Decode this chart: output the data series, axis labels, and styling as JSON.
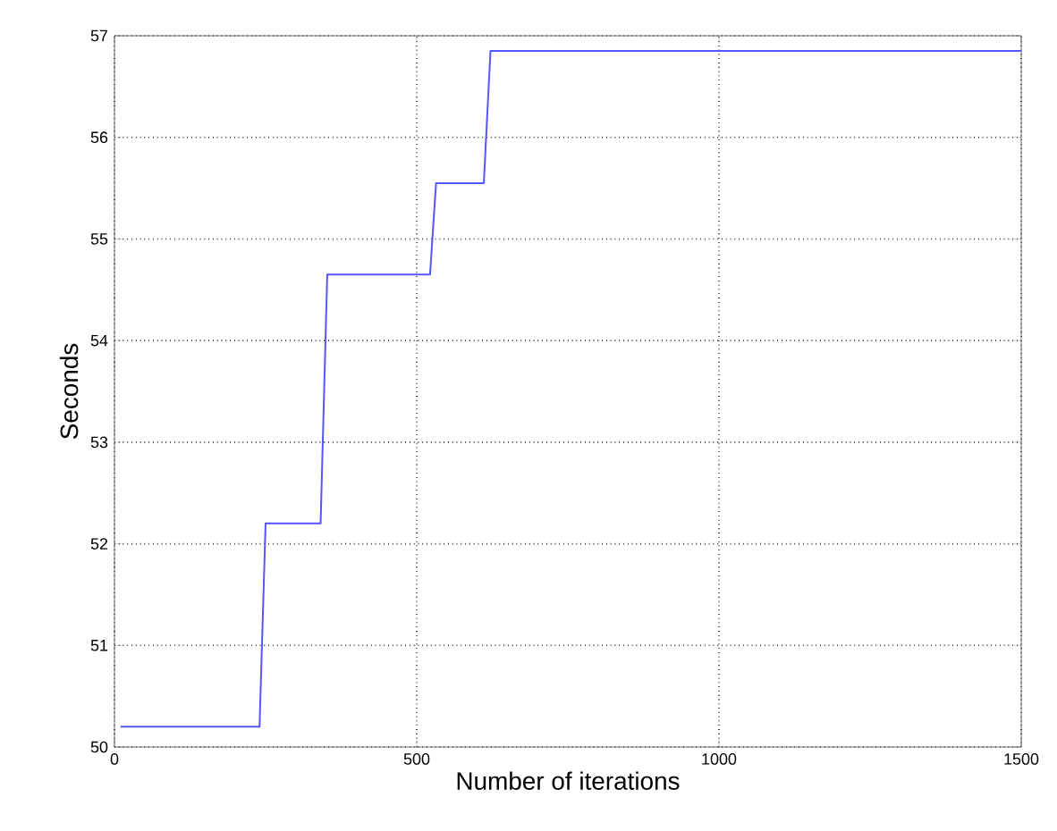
{
  "chart_data": {
    "type": "line",
    "xlabel": "Number of iterations",
    "ylabel": "Seconds",
    "x": [
      10,
      240,
      250,
      341,
      352,
      522,
      532,
      611,
      622,
      1500
    ],
    "series": [
      {
        "color": "#5555ff",
        "values": [
          50.2,
          50.2,
          52.2,
          52.2,
          54.65,
          54.65,
          55.55,
          55.55,
          56.85,
          56.85
        ]
      }
    ],
    "xlim": [
      0,
      1500
    ],
    "ylim": [
      50,
      57
    ],
    "xticks": [
      0,
      500,
      1000,
      1500
    ],
    "yticks": [
      50,
      51,
      52,
      53,
      54,
      55,
      56,
      57
    ],
    "grid": true,
    "line_style": "solid",
    "marker": "none"
  }
}
